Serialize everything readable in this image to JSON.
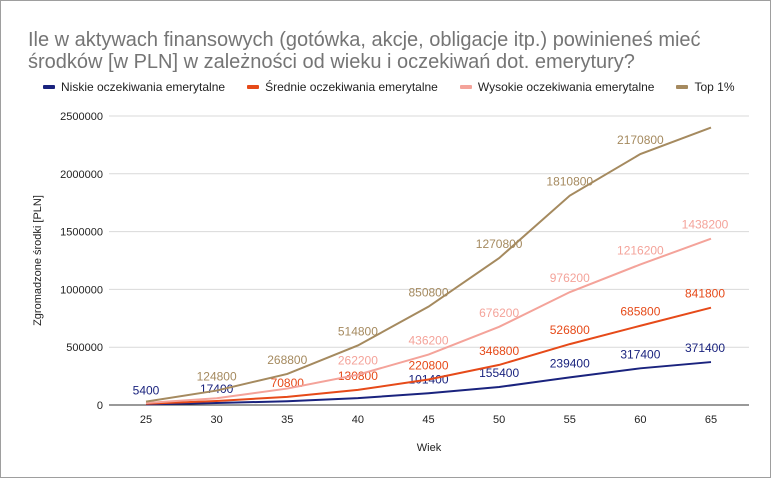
{
  "chart_data": {
    "type": "line",
    "title": "Ile w aktywach finansowych (gotówka, akcje, obligacje itp.) powinieneś mieć środków [w PLN] w zależności od wieku i oczekiwań dot. emerytury?",
    "xlabel": "Wiek",
    "ylabel": "Zgromadzone środki [PLN]",
    "x": [
      25,
      30,
      35,
      40,
      45,
      50,
      55,
      60,
      65
    ],
    "ylim": [
      0,
      2500000
    ],
    "yticks": [
      "0",
      "500000",
      "1000000",
      "1500000",
      "2000000",
      "2500000"
    ],
    "grid": true,
    "legend": "top",
    "series": [
      {
        "name": "Niskie oczekiwania emerytalne",
        "color": "#1a237e",
        "values": [
          5400,
          17400,
          32400,
          59400,
          101400,
          155400,
          239400,
          317400,
          371400
        ],
        "labels": [
          "5400",
          "17400",
          "",
          "",
          "101400",
          "155400",
          "239400",
          "317400",
          "371400"
        ]
      },
      {
        "name": "Średnie oczekiwania emerytalne",
        "color": "#e64a19",
        "values": [
          10800,
          34800,
          70800,
          130800,
          220800,
          346800,
          526800,
          685800,
          841800
        ],
        "labels": [
          "",
          "",
          "70800",
          "130800",
          "220800",
          "346800",
          "526800",
          "685800",
          "841800"
        ]
      },
      {
        "name": "Wysokie oczekiwania emerytalne",
        "color": "#f4a39a",
        "values": [
          16800,
          58200,
          142200,
          262200,
          436200,
          676200,
          976200,
          1216200,
          1438200
        ],
        "labels": [
          "",
          "",
          "",
          "262200",
          "436200",
          "676200",
          "976200",
          "1216200",
          "1438200"
        ]
      },
      {
        "name": "Top 1%",
        "color": "#a58a5f",
        "values": [
          28800,
          124800,
          268800,
          514800,
          850800,
          1270800,
          1810800,
          2170800,
          2400000
        ],
        "labels": [
          "",
          "124800",
          "268800",
          "514800",
          "850800",
          "1270800",
          "1810800",
          "2170800",
          ""
        ]
      }
    ]
  }
}
